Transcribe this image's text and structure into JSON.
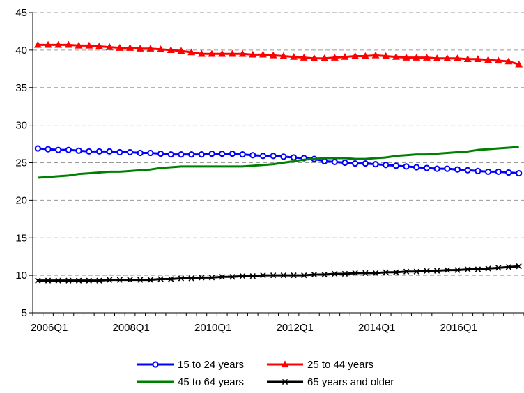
{
  "chart_data": {
    "type": "line",
    "title": "",
    "xlabel": "",
    "ylabel": "",
    "ylim": [
      5,
      45
    ],
    "yticks": [
      5,
      10,
      15,
      20,
      25,
      30,
      35,
      40,
      45
    ],
    "grid": "horizontal dashed",
    "legend_position": "bottom",
    "x_start": "2006Q1",
    "x_end": "2017Q4",
    "xtick_labels": [
      "2006Q1",
      "2008Q1",
      "2010Q1",
      "2012Q1",
      "2014Q1",
      "2016Q1"
    ],
    "x": [
      "2006Q1",
      "2006Q2",
      "2006Q3",
      "2006Q4",
      "2007Q1",
      "2007Q2",
      "2007Q3",
      "2007Q4",
      "2008Q1",
      "2008Q2",
      "2008Q3",
      "2008Q4",
      "2009Q1",
      "2009Q2",
      "2009Q3",
      "2009Q4",
      "2010Q1",
      "2010Q2",
      "2010Q3",
      "2010Q4",
      "2011Q1",
      "2011Q2",
      "2011Q3",
      "2011Q4",
      "2012Q1",
      "2012Q2",
      "2012Q3",
      "2012Q4",
      "2013Q1",
      "2013Q2",
      "2013Q3",
      "2013Q4",
      "2014Q1",
      "2014Q2",
      "2014Q3",
      "2014Q4",
      "2015Q1",
      "2015Q2",
      "2015Q3",
      "2015Q4",
      "2016Q1",
      "2016Q2",
      "2016Q3",
      "2016Q4",
      "2017Q1",
      "2017Q2",
      "2017Q3",
      "2017Q4"
    ],
    "series": [
      {
        "name": "15 to 24 years",
        "color": "#0000ff",
        "marker": "circle",
        "values": [
          26.9,
          26.8,
          26.7,
          26.7,
          26.6,
          26.5,
          26.5,
          26.5,
          26.4,
          26.4,
          26.3,
          26.3,
          26.2,
          26.1,
          26.1,
          26.1,
          26.1,
          26.2,
          26.2,
          26.2,
          26.1,
          26.0,
          25.9,
          25.9,
          25.8,
          25.7,
          25.6,
          25.5,
          25.2,
          25.1,
          25.0,
          24.9,
          24.9,
          24.8,
          24.7,
          24.6,
          24.5,
          24.4,
          24.3,
          24.2,
          24.2,
          24.1,
          24.0,
          23.9,
          23.8,
          23.8,
          23.7,
          23.6
        ]
      },
      {
        "name": "25 to 44 years",
        "color": "#ff0000",
        "marker": "triangle",
        "values": [
          40.7,
          40.7,
          40.7,
          40.7,
          40.6,
          40.6,
          40.5,
          40.4,
          40.3,
          40.3,
          40.2,
          40.2,
          40.1,
          40.0,
          39.9,
          39.7,
          39.5,
          39.5,
          39.5,
          39.5,
          39.5,
          39.4,
          39.4,
          39.3,
          39.2,
          39.1,
          39.0,
          38.9,
          38.9,
          39.0,
          39.1,
          39.2,
          39.2,
          39.3,
          39.2,
          39.1,
          39.0,
          39.0,
          39.0,
          38.9,
          38.9,
          38.9,
          38.8,
          38.8,
          38.7,
          38.6,
          38.5,
          38.1
        ]
      },
      {
        "name": "45 to 64 years",
        "color": "#008000",
        "marker": "none",
        "values": [
          23.0,
          23.1,
          23.2,
          23.3,
          23.5,
          23.6,
          23.7,
          23.8,
          23.8,
          23.9,
          24.0,
          24.1,
          24.3,
          24.4,
          24.5,
          24.5,
          24.5,
          24.5,
          24.5,
          24.5,
          24.5,
          24.6,
          24.7,
          24.8,
          25.0,
          25.2,
          25.4,
          25.5,
          25.6,
          25.6,
          25.6,
          25.5,
          25.5,
          25.6,
          25.7,
          25.9,
          26.0,
          26.1,
          26.1,
          26.2,
          26.3,
          26.4,
          26.5,
          26.7,
          26.8,
          26.9,
          27.0,
          27.1
        ]
      },
      {
        "name": "65 years and older",
        "color": "#000000",
        "marker": "x",
        "values": [
          9.3,
          9.3,
          9.3,
          9.3,
          9.3,
          9.3,
          9.3,
          9.4,
          9.4,
          9.4,
          9.4,
          9.4,
          9.5,
          9.5,
          9.6,
          9.6,
          9.7,
          9.7,
          9.8,
          9.8,
          9.9,
          9.9,
          10.0,
          10.0,
          10.0,
          10.0,
          10.0,
          10.1,
          10.1,
          10.2,
          10.2,
          10.3,
          10.3,
          10.3,
          10.4,
          10.4,
          10.5,
          10.5,
          10.6,
          10.6,
          10.7,
          10.7,
          10.8,
          10.8,
          10.9,
          11.0,
          11.1,
          11.2
        ]
      }
    ]
  }
}
